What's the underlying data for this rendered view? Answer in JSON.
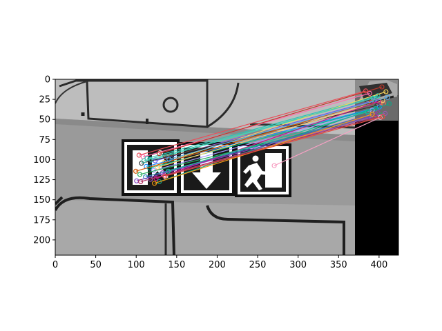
{
  "figure": {
    "x_ticks": [
      "0",
      "50",
      "100",
      "150",
      "200",
      "250",
      "300",
      "350",
      "400"
    ],
    "y_ticks": [
      "0",
      "25",
      "50",
      "75",
      "100",
      "125",
      "150",
      "175",
      "200"
    ],
    "image_width": 424,
    "image_height": 219,
    "x_tick_values": [
      0,
      50,
      100,
      150,
      200,
      250,
      300,
      350,
      400
    ],
    "y_tick_values": [
      0,
      25,
      50,
      75,
      100,
      125,
      150,
      175,
      200
    ]
  },
  "matches": [
    {
      "x1": 103,
      "y1": 94,
      "x2": 383,
      "y2": 14,
      "color": "#e8505b"
    },
    {
      "x1": 108,
      "y1": 96,
      "x2": 388,
      "y2": 17,
      "color": "#ff6fae"
    },
    {
      "x1": 113,
      "y1": 98,
      "x2": 398,
      "y2": 20,
      "color": "#2ec4b6"
    },
    {
      "x1": 118,
      "y1": 100,
      "x2": 396,
      "y2": 22,
      "color": "#3dd6c0"
    },
    {
      "x1": 123,
      "y1": 101,
      "x2": 393,
      "y2": 26,
      "color": "#6c5ce7"
    },
    {
      "x1": 128,
      "y1": 92,
      "x2": 403,
      "y2": 9,
      "color": "#c0392b"
    },
    {
      "x1": 134,
      "y1": 103,
      "x2": 408,
      "y2": 15,
      "color": "#f6d55c"
    },
    {
      "x1": 137,
      "y1": 96,
      "x2": 405,
      "y2": 30,
      "color": "#e17055"
    },
    {
      "x1": 106,
      "y1": 104,
      "x2": 397,
      "y2": 32,
      "color": "#2d3436"
    },
    {
      "x1": 112,
      "y1": 108,
      "x2": 400,
      "y2": 34,
      "color": "#1e90ff"
    },
    {
      "x1": 116,
      "y1": 110,
      "x2": 395,
      "y2": 36,
      "color": "#00b894"
    },
    {
      "x1": 121,
      "y1": 113,
      "x2": 391,
      "y2": 38,
      "color": "#a29bfe"
    },
    {
      "x1": 126,
      "y1": 109,
      "x2": 404,
      "y2": 26,
      "color": "#fdcb6e"
    },
    {
      "x1": 132,
      "y1": 116,
      "x2": 398,
      "y2": 41,
      "color": "#8e44ad"
    },
    {
      "x1": 99,
      "y1": 114,
      "x2": 390,
      "y2": 28,
      "color": "#d35400"
    },
    {
      "x1": 104,
      "y1": 118,
      "x2": 402,
      "y2": 44,
      "color": "#27ae60"
    },
    {
      "x1": 111,
      "y1": 121,
      "x2": 386,
      "y2": 45,
      "color": "#2980b9"
    },
    {
      "x1": 117,
      "y1": 124,
      "x2": 407,
      "y2": 42,
      "color": "#9b59b6"
    },
    {
      "x1": 124,
      "y1": 123,
      "x2": 399,
      "y2": 27,
      "color": "#c71585"
    },
    {
      "x1": 128,
      "y1": 127,
      "x2": 412,
      "y2": 30,
      "color": "#16a085"
    },
    {
      "x1": 100,
      "y1": 126,
      "x2": 388,
      "y2": 46,
      "color": "#7f3fbf"
    },
    {
      "x1": 105,
      "y1": 127,
      "x2": 395,
      "y2": 47,
      "color": "#b03060"
    },
    {
      "x1": 122,
      "y1": 129,
      "x2": 391,
      "y2": 43,
      "color": "#f39c12"
    },
    {
      "x1": 139,
      "y1": 114,
      "x2": 385,
      "y2": 40,
      "color": "#1abc9c"
    },
    {
      "x1": 270,
      "y1": 107,
      "x2": 401,
      "y2": 47,
      "color": "#f7a1c4"
    },
    {
      "x1": 140,
      "y1": 99,
      "x2": 410,
      "y2": 22,
      "color": "#5dade2"
    },
    {
      "x1": 109,
      "y1": 101,
      "x2": 392,
      "y2": 23,
      "color": "#48c9b0"
    },
    {
      "x1": 135,
      "y1": 120,
      "x2": 404,
      "y2": 46,
      "color": "#e74c3c"
    }
  ]
}
